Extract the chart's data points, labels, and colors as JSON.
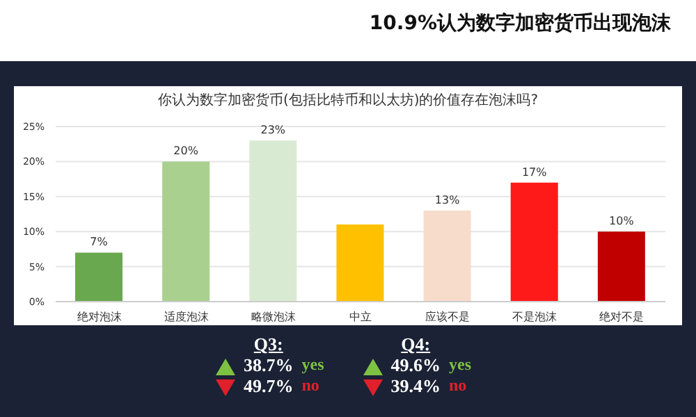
{
  "chart_data": {
    "type": "bar",
    "title": "10.9%认为数字加密货币出现泡沫",
    "subtitle": "你认为数字加密货币(包括比特币和以太坊)的价值存在泡沫吗?",
    "categories": [
      "绝对泡沫",
      "适度泡沫",
      "略微泡沫",
      "中立",
      "应该不是",
      "不是泡沫",
      "绝对不是"
    ],
    "values": [
      7,
      20,
      23,
      11,
      13,
      17,
      10
    ],
    "value_labels": [
      "7%",
      "20%",
      "23%",
      null,
      "13%",
      "17%",
      "10%"
    ],
    "colors": [
      "#6aa84f",
      "#a9d08e",
      "#d9ead3",
      "#ffc000",
      "#f8dccb",
      "#ff1a1a",
      "#c00000"
    ],
    "ylim": [
      0,
      25
    ],
    "yticks": [
      {
        "value": 0,
        "label": "0%"
      },
      {
        "value": 5,
        "label": "5%"
      },
      {
        "value": 10,
        "label": "10%"
      },
      {
        "value": 15,
        "label": "15%"
      },
      {
        "value": 20,
        "label": "20%"
      },
      {
        "value": 25,
        "label": "25%"
      }
    ],
    "grid": "y",
    "legend": false,
    "annotations": [
      "Q3:",
      "38.7%",
      "yes",
      "49.7%",
      "no",
      "Q4:",
      "49.6%",
      "yes",
      "39.4%",
      "no"
    ]
  }
}
